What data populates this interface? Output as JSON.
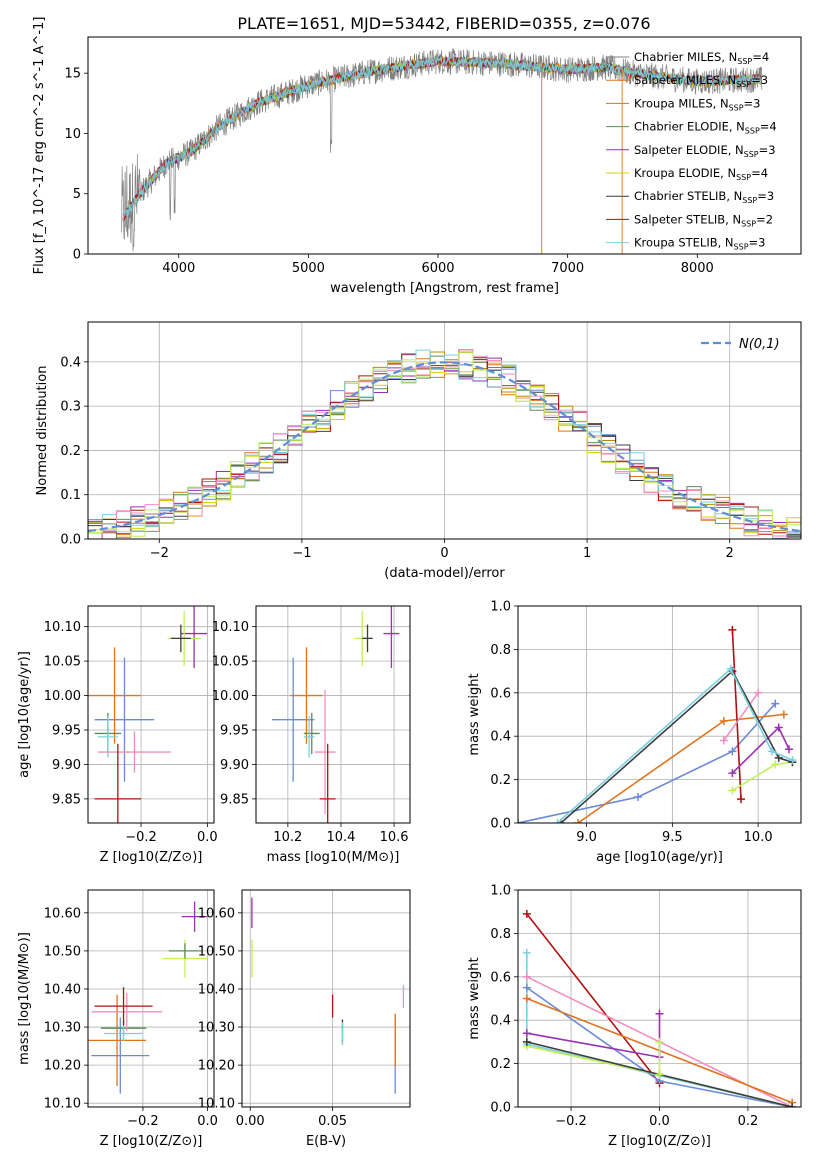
{
  "figure_title": "PLATE=1651, MJD=53442, FIBERID=0355, z=0.076",
  "colors": {
    "model_colors": [
      "#6b8bd6",
      "#e0731f",
      "#b8860b",
      "#5a8f5a",
      "#9b30b0",
      "#d4d400",
      "#3d3d3d",
      "#b21010",
      "#79d0e0",
      "#f58ec0",
      "#c0f05a"
    ],
    "spectrum_gray": "#808080",
    "normal_dashed": "#5f8ed6"
  },
  "chart_data": [
    {
      "id": "spectrum",
      "type": "line",
      "xlabel": "wavelength [Angstrom, rest frame]",
      "ylabel": "Flux [f_λ 10^-17 erg cm^-2 s^-1 A^-1]",
      "xlim": [
        3300,
        8800
      ],
      "ylim": [
        0,
        18
      ],
      "xticks": [
        4000,
        5000,
        6000,
        7000,
        8000
      ],
      "yticks": [
        0,
        5,
        10,
        15
      ],
      "grid": false,
      "legend_position": "right",
      "series": [
        {
          "name": "Chabrier MILES, N_SSP=4",
          "color": "#808080"
        },
        {
          "name": "Salpeter MILES, N_SSP=3",
          "color": "#e0731f"
        },
        {
          "name": "Kroupa MILES, N_SSP=3",
          "color": "#b8860b"
        },
        {
          "name": "Chabrier ELODIE, N_SSP=4",
          "color": "#5a8f5a"
        },
        {
          "name": "Salpeter ELODIE, N_SSP=3",
          "color": "#9b30b0"
        },
        {
          "name": "Kroupa ELODIE, N_SSP=4",
          "color": "#d4d400"
        },
        {
          "name": "Chabrier STELIB, N_SSP=3",
          "color": "#3d3d3d"
        },
        {
          "name": "Salpeter STELIB, N_SSP=2",
          "color": "#b21010"
        },
        {
          "name": "Kroupa STELIB, N_SSP=3",
          "color": "#79d0e0"
        }
      ],
      "continuum_points": [
        [
          3570,
          3
        ],
        [
          3700,
          5
        ],
        [
          3900,
          7.5
        ],
        [
          4100,
          8.5
        ],
        [
          4300,
          10.5
        ],
        [
          4600,
          12.5
        ],
        [
          5000,
          14
        ],
        [
          5500,
          15.2
        ],
        [
          6000,
          16
        ],
        [
          6500,
          15.8
        ],
        [
          7000,
          15.3
        ],
        [
          7300,
          15.5
        ],
        [
          7500,
          15
        ],
        [
          8000,
          14.3
        ],
        [
          8500,
          14.5
        ]
      ]
    },
    {
      "id": "residuals",
      "type": "line",
      "xlabel": "(data-model)/error",
      "ylabel": "Normed distribution",
      "xlim": [
        -2.5,
        2.5
      ],
      "ylim": [
        0,
        0.49
      ],
      "xticks": [
        -2,
        -1,
        0,
        1,
        2
      ],
      "yticks": [
        0.0,
        0.1,
        0.2,
        0.3,
        0.4
      ],
      "grid": true,
      "legend_position": "upper right",
      "legend_label": "N(0,1)",
      "bins": [
        -2.5,
        -2.4,
        -2.3,
        -2.2,
        -2.1,
        -2.0,
        -1.9,
        -1.8,
        -1.7,
        -1.6,
        -1.5,
        -1.4,
        -1.3,
        -1.2,
        -1.1,
        -1.0,
        -0.9,
        -0.8,
        -0.7,
        -0.6,
        -0.5,
        -0.4,
        -0.3,
        -0.2,
        -0.1,
        0.0,
        0.1,
        0.2,
        0.3,
        0.4,
        0.5,
        0.6,
        0.7,
        0.8,
        0.9,
        1.0,
        1.1,
        1.2,
        1.3,
        1.4,
        1.5,
        1.6,
        1.7,
        1.8,
        1.9,
        2.0,
        2.1,
        2.2,
        2.3,
        2.4
      ]
    },
    {
      "id": "age-vs-Z",
      "type": "scatter",
      "xlabel": "Z [log10(Z/Z⊙)]",
      "ylabel": "age [log10(age/yr)]",
      "xlim": [
        -0.36,
        0.02
      ],
      "ylim": [
        9.815,
        10.13
      ],
      "xticks": [
        -0.2,
        0.0
      ],
      "yticks": [
        9.85,
        9.9,
        9.95,
        10.0,
        10.05,
        10.1
      ],
      "grid": true,
      "points": [
        {
          "x": -0.25,
          "y": 9.965,
          "xerr": 0.09,
          "yerr": 0.09,
          "color": "#6b8bd6"
        },
        {
          "x": -0.28,
          "y": 10.0,
          "xerr": 0.08,
          "yerr": 0.07,
          "color": "#e0731f"
        },
        {
          "x": -0.3,
          "y": 9.945,
          "xerr": 0.04,
          "yerr": 0.03,
          "color": "#5a8f5a"
        },
        {
          "x": -0.3,
          "y": 9.94,
          "xerr": 0.03,
          "yerr": 0.03,
          "color": "#79d0e0"
        },
        {
          "x": -0.22,
          "y": 9.918,
          "xerr": 0.11,
          "yerr": 0.03,
          "color": "#f58ec0"
        },
        {
          "x": -0.27,
          "y": 9.85,
          "xerr": 0.07,
          "yerr": 0.08,
          "color": "#b21010"
        },
        {
          "x": -0.04,
          "y": 10.09,
          "xerr": 0.04,
          "yerr": 0.05,
          "color": "#9b30b0"
        },
        {
          "x": -0.07,
          "y": 10.083,
          "xerr": 0.05,
          "yerr": 0.04,
          "color": "#c0f05a"
        },
        {
          "x": -0.08,
          "y": 10.083,
          "xerr": 0.03,
          "yerr": 0.02,
          "color": "#3d3d3d"
        }
      ]
    },
    {
      "id": "age-vs-mass",
      "type": "scatter",
      "xlabel": "mass [log10(M/M⊙)]",
      "ylabel": "",
      "xlim": [
        10.08,
        10.66
      ],
      "ylim": [
        9.815,
        10.13
      ],
      "xticks": [
        10.2,
        10.4,
        10.6
      ],
      "yticks": [
        9.85,
        9.9,
        9.95,
        10.0,
        10.05,
        10.1
      ],
      "grid": true,
      "points": [
        {
          "x": 10.22,
          "y": 9.965,
          "xerr": 0.08,
          "yerr": 0.09,
          "color": "#6b8bd6"
        },
        {
          "x": 10.27,
          "y": 10.0,
          "xerr": 0.06,
          "yerr": 0.07,
          "color": "#e0731f"
        },
        {
          "x": 10.29,
          "y": 9.945,
          "xerr": 0.03,
          "yerr": 0.03,
          "color": "#5a8f5a"
        },
        {
          "x": 10.28,
          "y": 9.94,
          "xerr": 0.02,
          "yerr": 0.03,
          "color": "#79d0e0"
        },
        {
          "x": 10.34,
          "y": 9.918,
          "xerr": 0.04,
          "yerr": 0.09,
          "color": "#f58ec0"
        },
        {
          "x": 10.35,
          "y": 9.85,
          "xerr": 0.03,
          "yerr": 0.08,
          "color": "#b21010"
        },
        {
          "x": 10.59,
          "y": 10.09,
          "xerr": 0.03,
          "yerr": 0.05,
          "color": "#9b30b0"
        },
        {
          "x": 10.48,
          "y": 10.083,
          "xerr": 0.03,
          "yerr": 0.04,
          "color": "#c0f05a"
        },
        {
          "x": 10.5,
          "y": 10.083,
          "xerr": 0.02,
          "yerr": 0.02,
          "color": "#3d3d3d"
        }
      ]
    },
    {
      "id": "weight-vs-age",
      "type": "line",
      "xlabel": "age [log10(age/yr)]",
      "ylabel": "mass weight",
      "xlim": [
        8.6,
        10.25
      ],
      "ylim": [
        0,
        1
      ],
      "xticks": [
        9.0,
        9.5,
        10.0
      ],
      "yticks": [
        0.0,
        0.2,
        0.4,
        0.6,
        0.8,
        1.0
      ],
      "grid": true,
      "series": [
        {
          "color": "#6b8bd6",
          "x": [
            8.6,
            9.3,
            9.85,
            10.1
          ],
          "y": [
            0.0,
            0.12,
            0.33,
            0.55
          ]
        },
        {
          "color": "#e0731f",
          "x": [
            8.95,
            9.8,
            10.15
          ],
          "y": [
            0.0,
            0.47,
            0.5
          ]
        },
        {
          "color": "#b21010",
          "x": [
            9.85,
            9.9
          ],
          "y": [
            0.89,
            0.11
          ]
        },
        {
          "color": "#9b30b0",
          "x": [
            9.85,
            10.12,
            10.18
          ],
          "y": [
            0.23,
            0.44,
            0.34
          ]
        },
        {
          "color": "#f58ec0",
          "x": [
            9.8,
            10.0
          ],
          "y": [
            0.38,
            0.6
          ]
        },
        {
          "color": "#c0f05a",
          "x": [
            9.85,
            10.1,
            10.2
          ],
          "y": [
            0.15,
            0.27,
            0.28
          ]
        },
        {
          "color": "#3d3d3d",
          "x": [
            8.85,
            9.85,
            10.12,
            10.2
          ],
          "y": [
            0.0,
            0.7,
            0.3,
            0.28
          ]
        },
        {
          "color": "#79d0e0",
          "x": [
            8.83,
            9.84,
            10.08,
            10.2
          ],
          "y": [
            0.0,
            0.71,
            0.33,
            0.29
          ]
        }
      ]
    },
    {
      "id": "mass-vs-Z",
      "type": "scatter",
      "xlabel": "Z [log10(Z/Z⊙)]",
      "ylabel": "mass [log10(M/M⊙)]",
      "xlim": [
        -0.37,
        0.02
      ],
      "ylim": [
        10.09,
        10.66
      ],
      "xticks": [
        -0.2,
        0.0
      ],
      "yticks": [
        10.1,
        10.2,
        10.3,
        10.4,
        10.5,
        10.6
      ],
      "grid": true,
      "points": [
        {
          "x": -0.27,
          "y": 10.225,
          "xerr": 0.09,
          "yerr": 0.1,
          "color": "#6b8bd6"
        },
        {
          "x": -0.28,
          "y": 10.265,
          "xerr": 0.09,
          "yerr": 0.12,
          "color": "#e0731f"
        },
        {
          "x": -0.26,
          "y": 10.297,
          "xerr": 0.07,
          "yerr": 0.02,
          "color": "#5a8f5a"
        },
        {
          "x": -0.26,
          "y": 10.283,
          "xerr": 0.06,
          "yerr": 0.02,
          "color": "#79d0e0"
        },
        {
          "x": -0.25,
          "y": 10.34,
          "xerr": 0.11,
          "yerr": 0.05,
          "color": "#f58ec0"
        },
        {
          "x": -0.26,
          "y": 10.355,
          "xerr": 0.09,
          "yerr": 0.05,
          "color": "#b21010"
        },
        {
          "x": -0.04,
          "y": 10.59,
          "xerr": 0.04,
          "yerr": 0.04,
          "color": "#9b30b0"
        },
        {
          "x": -0.07,
          "y": 10.48,
          "xerr": 0.07,
          "yerr": 0.05,
          "color": "#c0f05a"
        },
        {
          "x": -0.07,
          "y": 10.5,
          "xerr": 0.05,
          "yerr": 0.02,
          "color": "#5a8f5a"
        }
      ]
    },
    {
      "id": "mass-vs-EBV",
      "type": "scatter",
      "xlabel": "E(B-V)",
      "ylabel": "",
      "xlim": [
        -0.005,
        0.097
      ],
      "ylim": [
        10.09,
        10.66
      ],
      "xticks": [
        0.0,
        0.05
      ],
      "yticks": [
        10.1,
        10.2,
        10.3,
        10.4,
        10.5,
        10.6
      ],
      "grid": true,
      "points": [
        {
          "x": 0.001,
          "y": 10.6,
          "xerr": 0.0,
          "yerr": 0.04,
          "color": "#9b30b0"
        },
        {
          "x": 0.001,
          "y": 10.48,
          "xerr": 0.0,
          "yerr": 0.05,
          "color": "#c0f05a"
        },
        {
          "x": 0.05,
          "y": 10.355,
          "xerr": 0.0,
          "yerr": 0.03,
          "color": "#b21010"
        },
        {
          "x": 0.056,
          "y": 10.29,
          "xerr": 0.0,
          "yerr": 0.03,
          "color": "#3d3d3d"
        },
        {
          "x": 0.056,
          "y": 10.283,
          "xerr": 0.0,
          "yerr": 0.03,
          "color": "#79d0e0"
        },
        {
          "x": 0.088,
          "y": 10.225,
          "xerr": 0.0,
          "yerr": 0.1,
          "color": "#6b8bd6"
        },
        {
          "x": 0.088,
          "y": 10.265,
          "xerr": 0.0,
          "yerr": 0.07,
          "color": "#e0731f"
        },
        {
          "x": 0.093,
          "y": 10.38,
          "xerr": 0.0,
          "yerr": 0.03,
          "color": "#f58ec0"
        }
      ]
    },
    {
      "id": "weight-vs-Z",
      "type": "line",
      "xlabel": "Z [log10(Z/Z⊙)]",
      "ylabel": "mass weight",
      "xlim": [
        -0.32,
        0.32
      ],
      "ylim": [
        0,
        1
      ],
      "xticks": [
        -0.2,
        0.0,
        0.2
      ],
      "yticks": [
        0.0,
        0.2,
        0.4,
        0.6,
        0.8,
        1.0
      ],
      "grid": true,
      "series": [
        {
          "color": "#b21010",
          "x": [
            -0.3,
            0.0
          ],
          "y": [
            0.89,
            0.11
          ]
        },
        {
          "color": "#79d0e0",
          "x": [
            -0.3,
            -0.3,
            0.3
          ],
          "y": [
            0.71,
            0.29,
            0.0
          ]
        },
        {
          "color": "#6b8bd6",
          "x": [
            -0.3,
            0.0,
            0.3
          ],
          "y": [
            0.55,
            0.12,
            0.0
          ]
        },
        {
          "color": "#f58ec0",
          "x": [
            -0.3,
            0.3
          ],
          "y": [
            0.6,
            0.0
          ]
        },
        {
          "color": "#e0731f",
          "x": [
            -0.3,
            0.3
          ],
          "y": [
            0.5,
            0.02
          ]
        },
        {
          "color": "#9b30b0",
          "x": [
            -0.3,
            0.0,
            0.0
          ],
          "y": [
            0.34,
            0.23,
            0.43
          ]
        },
        {
          "color": "#c0f05a",
          "x": [
            -0.3,
            0.0,
            0.3
          ],
          "y": [
            0.28,
            0.15,
            0.0
          ]
        },
        {
          "color": "#3d3d3d",
          "x": [
            -0.3,
            0.0,
            0.3
          ],
          "y": [
            0.3,
            0.15,
            0.0
          ]
        },
        {
          "color": "#c0f05a",
          "x": [
            0.0,
            0.0
          ],
          "y": [
            0.15,
            0.3
          ]
        }
      ]
    }
  ]
}
